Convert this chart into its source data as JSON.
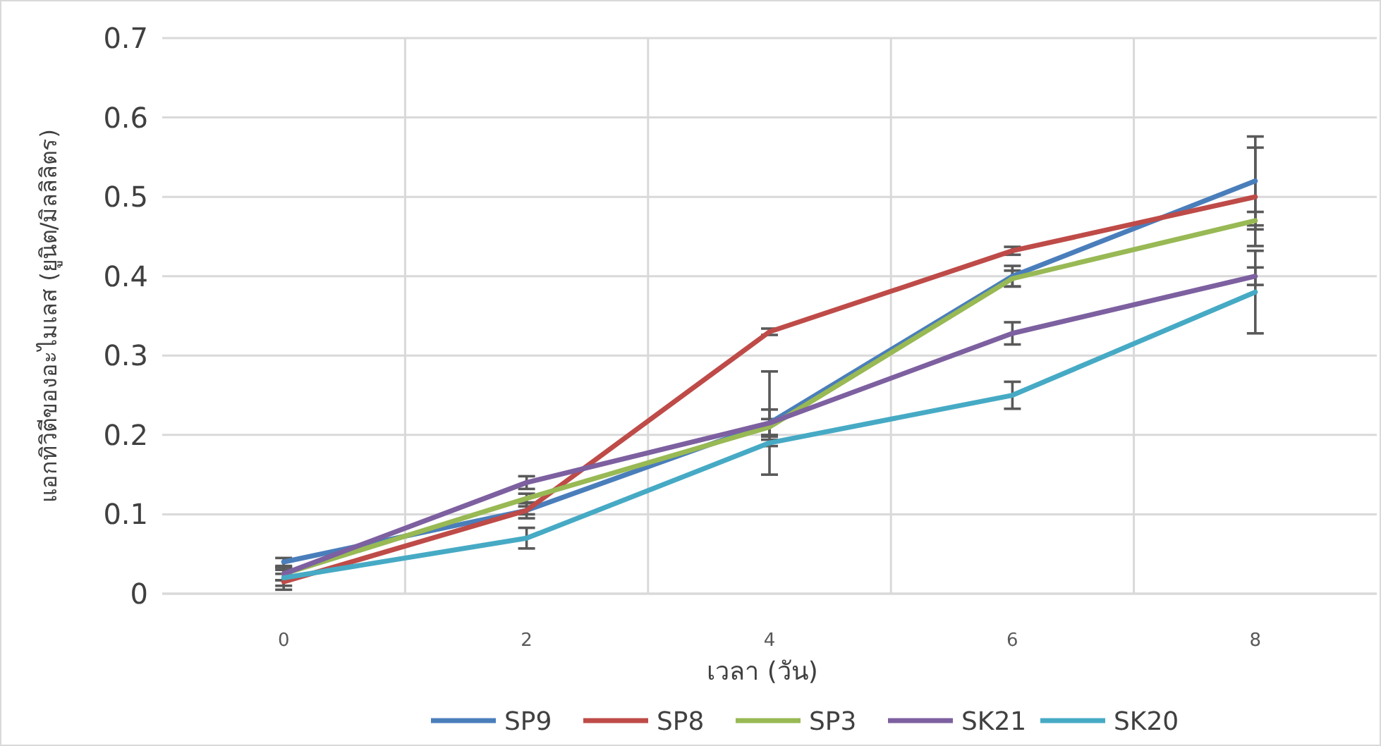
{
  "chart_data": {
    "type": "line",
    "xlabel": "เวลา (วัน)",
    "ylabel": "แอกทิวิตีของอะไมเลส (ยูนิต/มิลลิลิตร)",
    "categories": [
      "0",
      "2",
      "4",
      "6",
      "8"
    ],
    "ylim": [
      0,
      0.7
    ],
    "yticks": [
      {
        "value": 0,
        "label": "0"
      },
      0.1,
      0.2,
      0.3,
      0.4,
      0.5,
      0.6,
      0.7
    ],
    "grid": true,
    "legend": "bottom",
    "marker": "none",
    "line_style": "solid",
    "series": [
      {
        "name": "SP9",
        "color": "#4a7ebb",
        "values": [
          0.04,
          0.105,
          0.215,
          0.4,
          0.52
        ],
        "errors": [
          0.005,
          0.01,
          0.065,
          0.013,
          0.056
        ]
      },
      {
        "name": "SP8",
        "color": "#be4b48",
        "values": [
          0.015,
          0.105,
          0.33,
          0.432,
          0.5
        ],
        "errors": [
          0.01,
          0.005,
          0.004,
          0.005,
          0.062
        ]
      },
      {
        "name": "SP3",
        "color": "#98b954",
        "values": [
          0.025,
          0.12,
          0.21,
          0.397,
          0.47
        ],
        "errors": [
          0.008,
          0.006,
          0.01,
          0.01,
          0.011
        ]
      },
      {
        "name": "SK21",
        "color": "#7d60a0",
        "values": [
          0.025,
          0.14,
          0.215,
          0.328,
          0.4
        ],
        "errors": [
          0.008,
          0.008,
          0.017,
          0.014,
          0.011
        ]
      },
      {
        "name": "SK20",
        "color": "#46aac5",
        "values": [
          0.02,
          0.07,
          0.19,
          0.25,
          0.38
        ],
        "errors": [
          0.01,
          0.013,
          0.004,
          0.017,
          0.052
        ]
      }
    ]
  }
}
